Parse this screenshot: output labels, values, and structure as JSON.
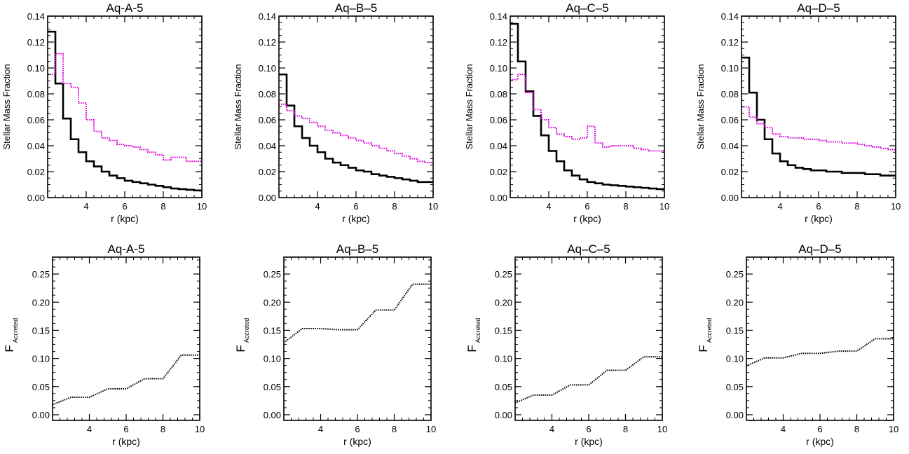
{
  "chart_data": [
    {
      "type": "line",
      "step": true,
      "title": "Aq-A-5",
      "xlabel": "r (kpc)",
      "ylabel": "Stellar Mass Fraction",
      "xlim": [
        2,
        10
      ],
      "ylim": [
        0,
        0.14
      ],
      "xticks": [
        4,
        6,
        8,
        10
      ],
      "yticks": [
        "0.00",
        "0.02",
        "0.04",
        "0.06",
        "0.08",
        "0.10",
        "0.12",
        "0.14"
      ],
      "series": [
        {
          "style": "solid",
          "color": "#000000",
          "edges": [
            2.0,
            2.4,
            2.8,
            3.2,
            3.6,
            4.0,
            4.4,
            4.8,
            5.2,
            5.6,
            6.0,
            6.4,
            6.8,
            7.2,
            7.6,
            8.0,
            8.4,
            8.8,
            9.2,
            9.6,
            10.0
          ],
          "values": [
            0.128,
            0.088,
            0.061,
            0.045,
            0.035,
            0.028,
            0.024,
            0.02,
            0.017,
            0.015,
            0.013,
            0.012,
            0.011,
            0.01,
            0.009,
            0.008,
            0.007,
            0.0065,
            0.006,
            0.0055
          ]
        },
        {
          "style": "dotted",
          "color": "#dd00dd",
          "edges": [
            2.0,
            2.4,
            2.8,
            3.2,
            3.6,
            4.0,
            4.4,
            4.8,
            5.2,
            5.6,
            6.0,
            6.4,
            6.8,
            7.2,
            7.6,
            8.0,
            8.4,
            8.8,
            9.2,
            9.6,
            10.0
          ],
          "values": [
            0.095,
            0.111,
            0.088,
            0.085,
            0.073,
            0.06,
            0.051,
            0.046,
            0.044,
            0.041,
            0.04,
            0.039,
            0.037,
            0.035,
            0.033,
            0.029,
            0.031,
            0.031,
            0.028,
            0.028
          ]
        }
      ]
    },
    {
      "type": "line",
      "step": true,
      "title": "Aq–B–5",
      "xlabel": "r (kpc)",
      "ylabel": "Stellar Mass Fraction",
      "xlim": [
        2,
        10
      ],
      "ylim": [
        0,
        0.14
      ],
      "xticks": [
        4,
        6,
        8,
        10
      ],
      "yticks": [
        "0.00",
        "0.02",
        "0.04",
        "0.06",
        "0.08",
        "0.10",
        "0.12",
        "0.14"
      ],
      "series": [
        {
          "style": "solid",
          "color": "#000000",
          "edges": [
            2.0,
            2.4,
            2.8,
            3.2,
            3.6,
            4.0,
            4.4,
            4.8,
            5.2,
            5.6,
            6.0,
            6.4,
            6.8,
            7.2,
            7.6,
            8.0,
            8.4,
            8.8,
            9.2,
            9.6,
            10.0
          ],
          "values": [
            0.095,
            0.071,
            0.055,
            0.046,
            0.04,
            0.035,
            0.03,
            0.027,
            0.025,
            0.023,
            0.021,
            0.02,
            0.018,
            0.017,
            0.016,
            0.015,
            0.014,
            0.013,
            0.012,
            0.012
          ]
        },
        {
          "style": "dotted",
          "color": "#dd00dd",
          "edges": [
            2.0,
            2.4,
            2.8,
            3.2,
            3.6,
            4.0,
            4.4,
            4.8,
            5.2,
            5.6,
            6.0,
            6.4,
            6.8,
            7.2,
            7.6,
            8.0,
            8.4,
            8.8,
            9.2,
            9.6,
            10.0
          ],
          "values": [
            0.072,
            0.067,
            0.063,
            0.061,
            0.058,
            0.055,
            0.052,
            0.05,
            0.048,
            0.046,
            0.044,
            0.042,
            0.04,
            0.038,
            0.036,
            0.034,
            0.032,
            0.03,
            0.028,
            0.027
          ]
        }
      ]
    },
    {
      "type": "line",
      "step": true,
      "title": "Aq–C–5",
      "xlabel": "r (kpc)",
      "ylabel": "Stellar Mass Fraction",
      "xlim": [
        2,
        10
      ],
      "ylim": [
        0,
        0.14
      ],
      "xticks": [
        4,
        6,
        8,
        10
      ],
      "yticks": [
        "0.00",
        "0.02",
        "0.04",
        "0.06",
        "0.08",
        "0.10",
        "0.12",
        "0.14"
      ],
      "series": [
        {
          "style": "solid",
          "color": "#000000",
          "edges": [
            2.0,
            2.4,
            2.8,
            3.2,
            3.6,
            4.0,
            4.4,
            4.8,
            5.2,
            5.6,
            6.0,
            6.4,
            6.8,
            7.2,
            7.6,
            8.0,
            8.4,
            8.8,
            9.2,
            9.6,
            10.0
          ],
          "values": [
            0.134,
            0.105,
            0.082,
            0.063,
            0.048,
            0.036,
            0.028,
            0.021,
            0.017,
            0.014,
            0.012,
            0.011,
            0.01,
            0.0095,
            0.009,
            0.0085,
            0.008,
            0.0075,
            0.007,
            0.0065
          ]
        },
        {
          "style": "dotted",
          "color": "#dd00dd",
          "edges": [
            2.0,
            2.4,
            2.8,
            3.2,
            3.6,
            4.0,
            4.4,
            4.8,
            5.2,
            5.6,
            6.0,
            6.4,
            6.8,
            7.2,
            7.6,
            8.0,
            8.4,
            8.8,
            9.2,
            9.6,
            10.0
          ],
          "values": [
            0.091,
            0.095,
            0.081,
            0.068,
            0.06,
            0.054,
            0.049,
            0.047,
            0.045,
            0.046,
            0.055,
            0.042,
            0.039,
            0.04,
            0.04,
            0.04,
            0.038,
            0.037,
            0.036,
            0.036
          ]
        }
      ]
    },
    {
      "type": "line",
      "step": true,
      "title": "Aq–D–5",
      "xlabel": "r (kpc)",
      "ylabel": "Stellar Mass Fraction",
      "xlim": [
        2,
        10
      ],
      "ylim": [
        0,
        0.14
      ],
      "xticks": [
        4,
        6,
        8,
        10
      ],
      "yticks": [
        "0.00",
        "0.02",
        "0.04",
        "0.06",
        "0.08",
        "0.10",
        "0.12",
        "0.14"
      ],
      "series": [
        {
          "style": "solid",
          "color": "#000000",
          "edges": [
            2.0,
            2.4,
            2.8,
            3.2,
            3.6,
            4.0,
            4.4,
            4.8,
            5.2,
            5.6,
            6.0,
            6.4,
            6.8,
            7.2,
            7.6,
            8.0,
            8.4,
            8.8,
            9.2,
            9.6,
            10.0
          ],
          "values": [
            0.108,
            0.081,
            0.06,
            0.045,
            0.034,
            0.028,
            0.025,
            0.023,
            0.022,
            0.021,
            0.021,
            0.02,
            0.02,
            0.019,
            0.019,
            0.019,
            0.018,
            0.018,
            0.017,
            0.017
          ]
        },
        {
          "style": "dotted",
          "color": "#dd00dd",
          "edges": [
            2.0,
            2.4,
            2.8,
            3.2,
            3.6,
            4.0,
            4.4,
            4.8,
            5.2,
            5.6,
            6.0,
            6.4,
            6.8,
            7.2,
            7.6,
            8.0,
            8.4,
            8.8,
            9.2,
            9.6,
            10.0
          ],
          "values": [
            0.07,
            0.062,
            0.057,
            0.054,
            0.049,
            0.047,
            0.046,
            0.046,
            0.045,
            0.045,
            0.044,
            0.043,
            0.043,
            0.042,
            0.042,
            0.041,
            0.04,
            0.039,
            0.038,
            0.037
          ]
        }
      ]
    },
    {
      "type": "line",
      "title": "Aq-A-5",
      "xlabel": "r (kpc)",
      "ylabel": "F",
      "ylabel_sub": "Accreted",
      "xlim": [
        2,
        10
      ],
      "ylim": [
        -0.01,
        0.28
      ],
      "xticks": [
        4,
        6,
        8,
        10
      ],
      "yticks": [
        "0.00",
        "0.05",
        "0.10",
        "0.15",
        "0.20",
        "0.25"
      ],
      "series": [
        {
          "style": "dotted",
          "color": "#000000",
          "x": [
            2,
            3,
            4,
            5,
            6,
            7,
            8,
            9,
            10
          ],
          "y": [
            0.018,
            0.031,
            0.031,
            0.046,
            0.046,
            0.064,
            0.064,
            0.106,
            0.106
          ]
        }
      ]
    },
    {
      "type": "line",
      "title": "Aq–B–5",
      "xlabel": "r (kpc)",
      "ylabel": "F",
      "ylabel_sub": "Accreted",
      "xlim": [
        2,
        10
      ],
      "ylim": [
        -0.01,
        0.28
      ],
      "xticks": [
        4,
        6,
        8,
        10
      ],
      "yticks": [
        "0.00",
        "0.05",
        "0.10",
        "0.15",
        "0.20",
        "0.25"
      ],
      "series": [
        {
          "style": "dotted",
          "color": "#000000",
          "x": [
            2,
            3,
            4,
            5,
            6,
            7,
            8,
            9,
            10
          ],
          "y": [
            0.128,
            0.153,
            0.153,
            0.151,
            0.151,
            0.186,
            0.186,
            0.232,
            0.232
          ]
        }
      ]
    },
    {
      "type": "line",
      "title": "Aq–C–5",
      "xlabel": "r (kpc)",
      "ylabel": "F",
      "ylabel_sub": "Accreted",
      "xlim": [
        2,
        10
      ],
      "ylim": [
        -0.01,
        0.28
      ],
      "xticks": [
        4,
        6,
        8,
        10
      ],
      "yticks": [
        "0.00",
        "0.05",
        "0.10",
        "0.15",
        "0.20",
        "0.25"
      ],
      "series": [
        {
          "style": "dotted",
          "color": "#000000",
          "x": [
            2,
            3,
            4,
            5,
            6,
            7,
            8,
            9,
            10
          ],
          "y": [
            0.021,
            0.035,
            0.035,
            0.053,
            0.053,
            0.079,
            0.079,
            0.103,
            0.103
          ]
        }
      ]
    },
    {
      "type": "line",
      "title": "Aq–D–5",
      "xlabel": "r (kpc)",
      "ylabel": "F",
      "ylabel_sub": "Accreted",
      "xlim": [
        2,
        10
      ],
      "ylim": [
        -0.01,
        0.28
      ],
      "xticks": [
        4,
        6,
        8,
        10
      ],
      "yticks": [
        "0.00",
        "0.05",
        "0.10",
        "0.15",
        "0.20",
        "0.25"
      ],
      "series": [
        {
          "style": "dotted",
          "color": "#000000",
          "x": [
            2,
            3,
            4,
            5,
            6,
            7,
            8,
            9,
            10
          ],
          "y": [
            0.087,
            0.101,
            0.101,
            0.109,
            0.109,
            0.113,
            0.113,
            0.135,
            0.135
          ]
        }
      ]
    }
  ]
}
